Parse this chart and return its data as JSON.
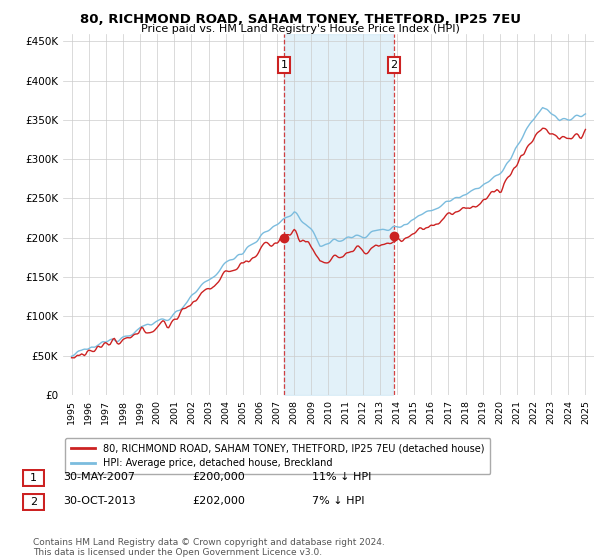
{
  "title": "80, RICHMOND ROAD, SAHAM TONEY, THETFORD, IP25 7EU",
  "subtitle": "Price paid vs. HM Land Registry's House Price Index (HPI)",
  "ylabel_ticks": [
    "£0",
    "£50K",
    "£100K",
    "£150K",
    "£200K",
    "£250K",
    "£300K",
    "£350K",
    "£400K",
    "£450K"
  ],
  "ylabel_values": [
    0,
    50000,
    100000,
    150000,
    200000,
    250000,
    300000,
    350000,
    400000,
    450000
  ],
  "ylim": [
    0,
    460000
  ],
  "xlim_start": 1994.5,
  "xlim_end": 2025.5,
  "sale1": {
    "date_num": 2007.41,
    "price": 200000,
    "label": "1",
    "hpi_diff": "11% ↓ HPI",
    "date_str": "30-MAY-2007",
    "price_str": "£200,000"
  },
  "sale2": {
    "date_num": 2013.83,
    "price": 202000,
    "label": "2",
    "hpi_diff": "7% ↓ HPI",
    "date_str": "30-OCT-2013",
    "price_str": "£202,000"
  },
  "hpi_color": "#7bbcde",
  "price_color": "#cc2222",
  "shade_color": "#d0e8f5",
  "annotation_box_edge": "#cc2222",
  "background_color": "#ffffff",
  "grid_color": "#cccccc",
  "legend_label_price": "80, RICHMOND ROAD, SAHAM TONEY, THETFORD, IP25 7EU (detached house)",
  "legend_label_hpi": "HPI: Average price, detached house, Breckland",
  "footnote": "Contains HM Land Registry data © Crown copyright and database right 2024.\nThis data is licensed under the Open Government Licence v3.0.",
  "xtick_years": [
    1995,
    1996,
    1997,
    1998,
    1999,
    2000,
    2001,
    2002,
    2003,
    2004,
    2005,
    2006,
    2007,
    2008,
    2009,
    2010,
    2011,
    2012,
    2013,
    2014,
    2015,
    2016,
    2017,
    2018,
    2019,
    2020,
    2021,
    2022,
    2023,
    2024,
    2025
  ]
}
